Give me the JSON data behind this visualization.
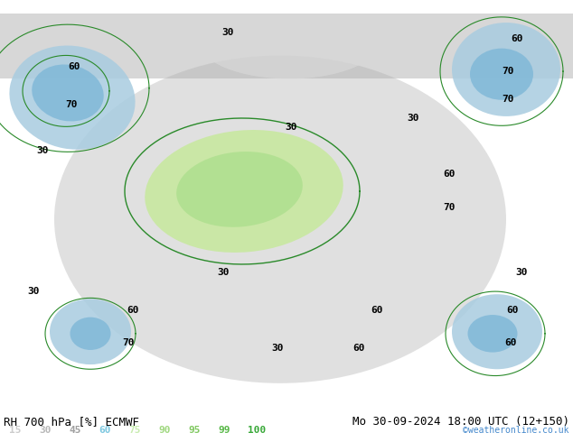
{
  "title_left": "RH 700 hPa [%] ECMWF",
  "title_right": "Mo 30-09-2024 18:00 UTC (12+150)",
  "credit": "©weatheronline.co.uk",
  "colorbar_values": [
    15,
    30,
    45,
    60,
    75,
    90,
    95,
    99,
    100
  ],
  "colorbar_colors": [
    "#e8e8e8",
    "#d0d0d0",
    "#b8b8b8",
    "#a0cce0",
    "#80c0e0",
    "#c8e8b0",
    "#a8d890",
    "#80c870",
    "#50b050"
  ],
  "bg_color": "#a0a0a0",
  "fig_bg": "#ffffff",
  "map_colors": {
    "low_rh_dark": "#888888",
    "low_rh_mid": "#aaaaaa",
    "low_rh_light": "#cccccc",
    "high_rh_green": "#90d070",
    "high_rh_blue": "#90c8e0",
    "contour_color": "#2a8a2a",
    "label_color": "#000000"
  },
  "figsize": [
    6.34,
    4.9
  ],
  "dpi": 100
}
